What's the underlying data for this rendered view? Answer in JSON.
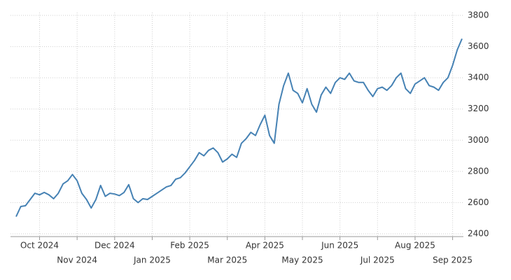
{
  "chart_data": {
    "type": "line",
    "categories": [
      null,
      null,
      null,
      null,
      null,
      "Oct 2024",
      null,
      null,
      null,
      null,
      null,
      null,
      null,
      "Nov 2024",
      null,
      null,
      null,
      null,
      null,
      null,
      null,
      "Dec 2024",
      null,
      null,
      null,
      null,
      null,
      null,
      null,
      "Jan 2025",
      null,
      null,
      null,
      null,
      null,
      null,
      null,
      "Feb 2025",
      null,
      null,
      null,
      null,
      null,
      null,
      null,
      "Mar 2025",
      null,
      null,
      null,
      null,
      null,
      null,
      null,
      "Apr 2025",
      null,
      null,
      null,
      null,
      null,
      null,
      null,
      "May 2025",
      null,
      null,
      null,
      null,
      null,
      null,
      null,
      "Jun 2025",
      null,
      null,
      null,
      null,
      null,
      null,
      null,
      "Jul 2025",
      null,
      null,
      null,
      null,
      null,
      null,
      null,
      "Aug 2025",
      null,
      null,
      null,
      null,
      null,
      null,
      null,
      "Sep 2025",
      null,
      null
    ],
    "values": [
      2510,
      2575,
      2580,
      2620,
      2660,
      2650,
      2665,
      2650,
      2625,
      2660,
      2720,
      2740,
      2780,
      2740,
      2660,
      2620,
      2565,
      2620,
      2710,
      2640,
      2660,
      2655,
      2645,
      2665,
      2715,
      2625,
      2600,
      2625,
      2620,
      2640,
      2660,
      2680,
      2700,
      2710,
      2750,
      2760,
      2790,
      2830,
      2870,
      2920,
      2900,
      2935,
      2950,
      2920,
      2860,
      2880,
      2910,
      2890,
      2980,
      3010,
      3050,
      3030,
      3100,
      3160,
      3030,
      2980,
      3230,
      3350,
      3430,
      3320,
      3300,
      3240,
      3330,
      3230,
      3180,
      3290,
      3340,
      3300,
      3370,
      3400,
      3390,
      3430,
      3380,
      3370,
      3370,
      3320,
      3280,
      3330,
      3340,
      3320,
      3350,
      3400,
      3430,
      3330,
      3300,
      3360,
      3380,
      3400,
      3350,
      3340,
      3320,
      3370,
      3400,
      3480,
      3580,
      3650
    ],
    "color": "#4682b4",
    "ylim": [
      2400,
      3800
    ],
    "yticks": [
      2400,
      2600,
      2800,
      3000,
      3200,
      3400,
      3600,
      3800
    ],
    "grid": true
  }
}
